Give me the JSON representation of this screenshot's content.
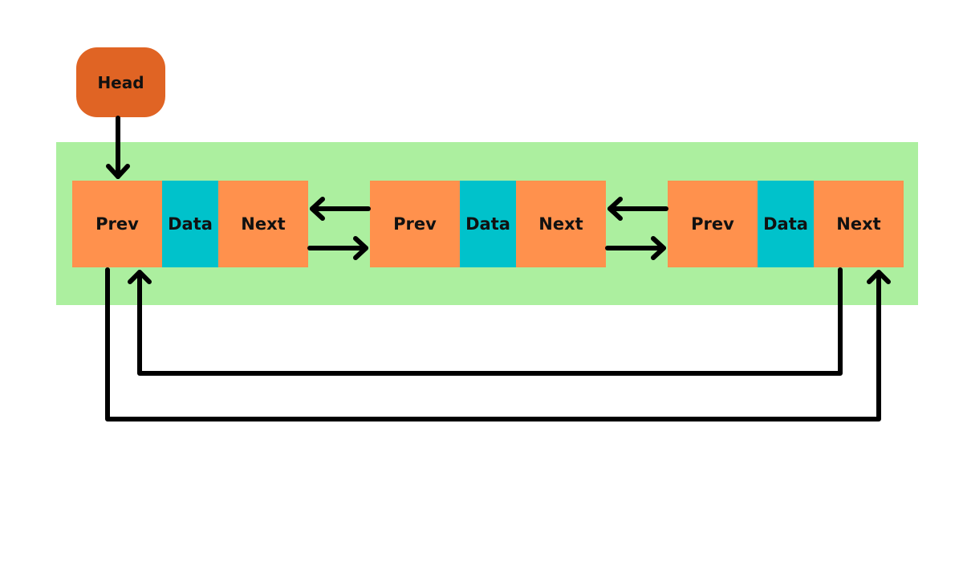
{
  "colors": {
    "band": "#acef9f",
    "head": "#e06424",
    "pointer_cell": "#ff914d",
    "data_cell": "#00c2cb",
    "arrow": "#000000"
  },
  "head": {
    "label": "Head"
  },
  "nodes": [
    {
      "prev": "Prev",
      "data": "Data",
      "next": "Next"
    },
    {
      "prev": "Prev",
      "data": "Data",
      "next": "Next"
    },
    {
      "prev": "Prev",
      "data": "Data",
      "next": "Next"
    }
  ],
  "links": [
    {
      "from": "head",
      "to": "node-1-prev",
      "kind": "head-pointer"
    },
    {
      "from": "node-1-next",
      "to": "node-2-prev",
      "kind": "next"
    },
    {
      "from": "node-2-prev",
      "to": "node-1-next",
      "kind": "prev"
    },
    {
      "from": "node-2-next",
      "to": "node-3-prev",
      "kind": "next"
    },
    {
      "from": "node-3-prev",
      "to": "node-2-next",
      "kind": "prev"
    },
    {
      "from": "node-3-next",
      "to": "node-1-prev",
      "kind": "circular-next"
    },
    {
      "from": "node-1-prev",
      "to": "node-3-next",
      "kind": "circular-prev"
    }
  ]
}
